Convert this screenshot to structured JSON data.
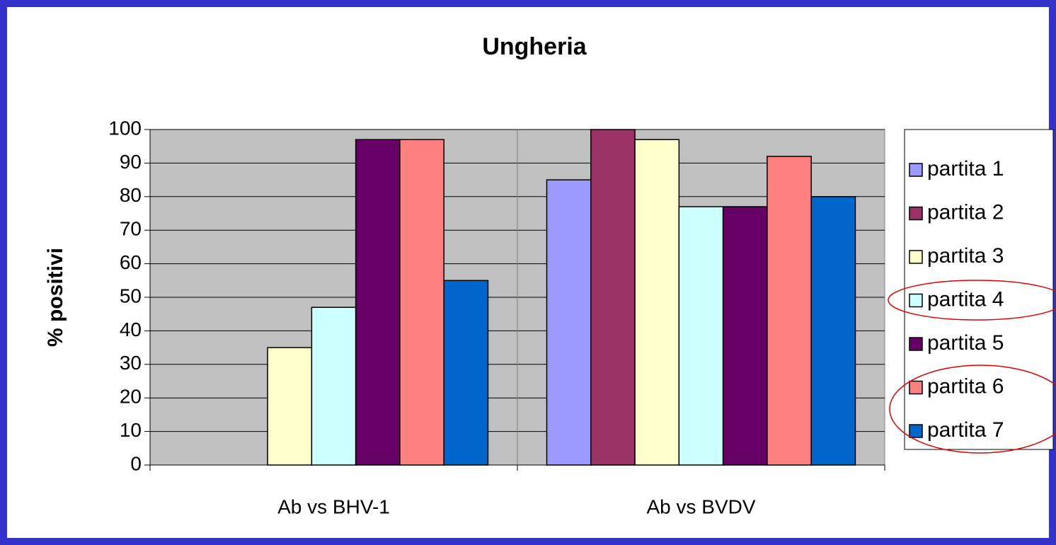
{
  "chart_data": {
    "type": "bar",
    "title": "Ungheria",
    "y_label": "% positivi",
    "categories": [
      "Ab vs BHV-1",
      "Ab vs BVDV"
    ],
    "series": [
      {
        "name": "partita 1",
        "color": "#9999ff",
        "values": [
          0,
          85
        ]
      },
      {
        "name": "partita 2",
        "color": "#993366",
        "values": [
          0,
          100
        ]
      },
      {
        "name": "partita 3",
        "color": "#ffffcc",
        "values": [
          35,
          97
        ]
      },
      {
        "name": "partita 4",
        "color": "#ccffff",
        "values": [
          47,
          77
        ]
      },
      {
        "name": "partita 5",
        "color": "#660066",
        "values": [
          97,
          77
        ]
      },
      {
        "name": "partita 6",
        "color": "#ff8080",
        "values": [
          97,
          92
        ]
      },
      {
        "name": "partita 7",
        "color": "#0066cc",
        "values": [
          55,
          80
        ]
      }
    ],
    "ylim": [
      0,
      100
    ],
    "yticks": [
      0,
      10,
      20,
      30,
      40,
      50,
      60,
      70,
      80,
      90,
      100
    ],
    "grid": true,
    "legend": "right"
  }
}
